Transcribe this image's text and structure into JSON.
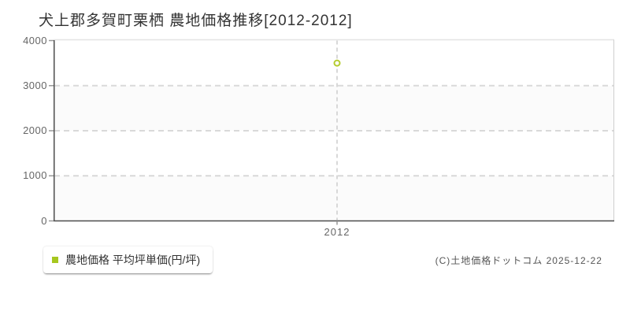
{
  "title": "犬上郡多賀町栗栖 農地価格推移[2012-2012]",
  "legend": {
    "label": "農地価格 平均坪単価(円/坪)",
    "marker_color": "#a6c71f"
  },
  "copyright": "(C)土地価格ドットコム 2025-12-22",
  "colors": {
    "axis": "#4d4d4d",
    "tick": "#999999",
    "grid_dash": "#d9d9d9",
    "border_top": "#e4e4e4",
    "border_right": "#cfcfcf",
    "band_shaded": "#fbfbfb",
    "band_plain": "#ffffff",
    "point_stroke": "#b5cc2f",
    "point_fill": "#ffffff"
  },
  "chart_data": {
    "type": "scatter",
    "title": "犬上郡多賀町栗栖 農地価格推移[2012-2012]",
    "x": [
      2012
    ],
    "series": [
      {
        "name": "農地価格 平均坪単価(円/坪)",
        "values": [
          3500
        ]
      }
    ],
    "ylim": [
      0,
      4000
    ],
    "yticks": [
      0,
      1000,
      2000,
      3000,
      4000
    ],
    "xticks": [
      2012
    ],
    "grid": "horizontal-dashed + vertical-dashed-at-xticks",
    "bands": "alternating horizontal bands between yticks, shaded: 0-1000 and 2000-3000",
    "legend_position": "below-plot-left",
    "point_style": "hollow circle"
  }
}
